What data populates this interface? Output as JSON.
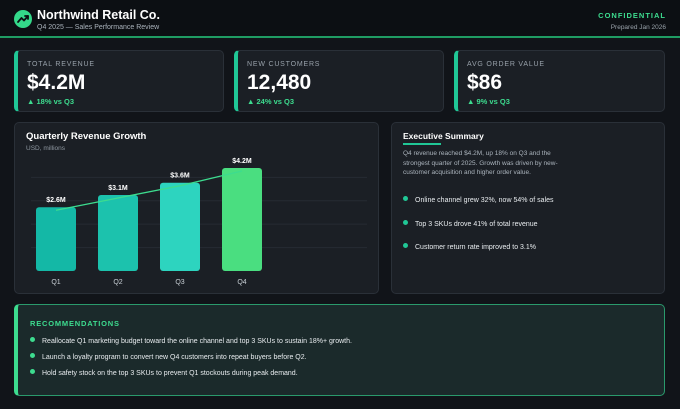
{
  "header": {
    "company": "Northwind Retail Co.",
    "subtitle": "Q4 2025 — Sales Performance Review",
    "classification": "CONFIDENTIAL",
    "prepared": "Prepared Jan 2026",
    "logo_icon": "trend-up-icon"
  },
  "kpis": [
    {
      "label": "TOTAL REVENUE",
      "value": "$4.2M",
      "delta": "▲ 18% vs Q3"
    },
    {
      "label": "NEW CUSTOMERS",
      "value": "12,480",
      "delta": "▲ 24% vs Q3"
    },
    {
      "label": "AVG ORDER VALUE",
      "value": "$86",
      "delta": "▲ 9% vs Q3"
    }
  ],
  "chart": {
    "title": "Quarterly Revenue Growth",
    "subtitle": "USD, millions"
  },
  "chart_data": {
    "type": "bar",
    "title": "Quarterly Revenue Growth",
    "subtitle": "USD, millions",
    "categories": [
      "Q1",
      "Q2",
      "Q3",
      "Q4"
    ],
    "values": [
      2.6,
      3.1,
      3.6,
      4.2
    ],
    "value_labels": [
      "$2.6M",
      "$3.1M",
      "$3.6M",
      "$4.2M"
    ],
    "colors": [
      "#14b8a6",
      "#1cc2ad",
      "#2dd4bf",
      "#4ade80"
    ],
    "trend_line": true,
    "ylim": [
      0,
      4.2
    ],
    "grid": true
  },
  "summary": {
    "title": "Executive Summary",
    "text": "Q4 revenue reached $4.2M, up 18% on Q3 and the strongest quarter of 2025. Growth was driven by new-customer acquisition and higher order value.",
    "items": [
      "Online channel grew 32%, now 54% of sales",
      "Top 3 SKUs drove 41% of total revenue",
      "Customer return rate improved to 3.1%"
    ]
  },
  "recommendations": {
    "title": "RECOMMENDATIONS",
    "items": [
      "Reallocate Q1 marketing budget toward the online channel and top 3 SKUs to sustain 18%+ growth.",
      "Launch a loyalty program to convert new Q4 customers into repeat buyers before Q2.",
      "Hold safety stock on the top 3 SKUs to prevent Q1 stockouts during peak demand."
    ]
  },
  "colors": {
    "accent": "#3ddc8f",
    "teal": "#20c796",
    "background": "#111419",
    "panel": "#1b1f25"
  }
}
